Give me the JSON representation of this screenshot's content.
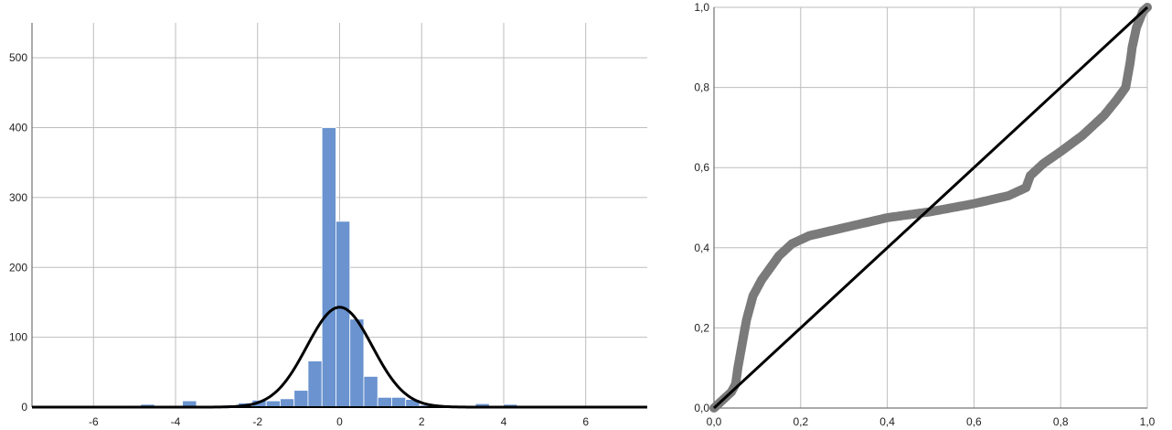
{
  "colors": {
    "bar_fill": "#6a93cf",
    "bar_stroke": "#ffffff",
    "curve": "#000000",
    "grid": "#bdbdbd",
    "points": "#7a7a7a",
    "reference_line": "#000000",
    "axis": "#555555"
  },
  "chart_data": [
    {
      "type": "bar",
      "subtype": "histogram_with_normal_curve",
      "title": "",
      "xlabel": "",
      "ylabel": "",
      "xlim": [
        -7.5,
        7.5
      ],
      "ylim": [
        0,
        550
      ],
      "grid": true,
      "x_ticks": [
        -6,
        -4,
        -2,
        0,
        2,
        4,
        6
      ],
      "x_tick_labels": [
        "-6",
        "-4",
        "-2",
        "0",
        "2",
        "4",
        "6"
      ],
      "y_ticks": [
        0,
        100,
        200,
        300,
        400,
        500
      ],
      "y_tick_labels": [
        "0",
        "100",
        "200",
        "300",
        "400",
        "500"
      ],
      "bin_width": 0.34,
      "bin_centers": [
        -5.02,
        -4.68,
        -3.66,
        -2.64,
        -2.3,
        -1.96,
        -1.62,
        -1.28,
        -0.94,
        -0.6,
        -0.26,
        0.08,
        0.42,
        0.76,
        1.1,
        1.44,
        1.78,
        2.12,
        2.46,
        3.48,
        4.16
      ],
      "values": [
        2,
        4,
        9,
        3,
        6,
        10,
        9,
        12,
        24,
        66,
        400,
        266,
        126,
        44,
        14,
        14,
        11,
        3,
        2,
        5,
        4
      ],
      "normal_curve": {
        "mean": 0,
        "sd": 0.8,
        "peak": 143
      }
    },
    {
      "type": "scatter",
      "subtype": "p-p_plot",
      "title": "",
      "xlabel": "",
      "ylabel": "",
      "xlim": [
        0,
        1
      ],
      "ylim": [
        0,
        1
      ],
      "grid": true,
      "x_ticks": [
        0,
        0.2,
        0.4,
        0.6,
        0.8,
        1.0
      ],
      "x_tick_labels": [
        "0,0",
        "0,2",
        "0,4",
        "0,6",
        "0,8",
        "1,0"
      ],
      "y_ticks": [
        0,
        0.2,
        0.4,
        0.6,
        0.8,
        1.0
      ],
      "y_tick_labels": [
        "0,0",
        "0,2",
        "0,4",
        "0,6",
        "0,8",
        "1,0"
      ],
      "reference_line": [
        [
          0,
          0
        ],
        [
          1,
          1
        ]
      ],
      "points": [
        [
          0.0,
          0.0
        ],
        [
          0.02,
          0.02
        ],
        [
          0.04,
          0.04
        ],
        [
          0.05,
          0.06
        ],
        [
          0.055,
          0.1
        ],
        [
          0.065,
          0.16
        ],
        [
          0.075,
          0.22
        ],
        [
          0.09,
          0.28
        ],
        [
          0.11,
          0.32
        ],
        [
          0.13,
          0.35
        ],
        [
          0.15,
          0.38
        ],
        [
          0.18,
          0.41
        ],
        [
          0.22,
          0.43
        ],
        [
          0.3,
          0.45
        ],
        [
          0.4,
          0.475
        ],
        [
          0.5,
          0.49
        ],
        [
          0.6,
          0.51
        ],
        [
          0.68,
          0.53
        ],
        [
          0.72,
          0.55
        ],
        [
          0.73,
          0.58
        ],
        [
          0.76,
          0.61
        ],
        [
          0.8,
          0.64
        ],
        [
          0.85,
          0.68
        ],
        [
          0.9,
          0.73
        ],
        [
          0.93,
          0.77
        ],
        [
          0.95,
          0.8
        ],
        [
          0.96,
          0.86
        ],
        [
          0.965,
          0.9
        ],
        [
          0.975,
          0.95
        ],
        [
          0.99,
          0.99
        ],
        [
          1.0,
          1.0
        ]
      ]
    }
  ]
}
